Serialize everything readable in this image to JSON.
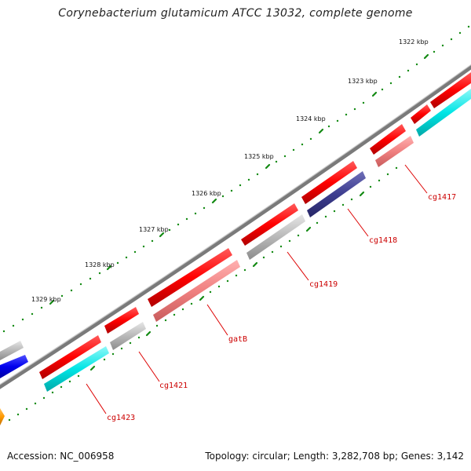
{
  "title": "Corynebacterium glutamicum ATCC 13032, complete genome",
  "accession": "Accession: NC_006958",
  "summary": "Topology: circular; Length: 3,282,708 bp; Genes: 3,142",
  "scale_labels": [
    "1322 kbp",
    "1323 kbp",
    "1324 kbp",
    "1325 kbp",
    "1326 kbp",
    "1327 kbp",
    "1328 kbp",
    "1329 kbp"
  ],
  "gene_labels": [
    "cg1417",
    "cg1418",
    "cg1419",
    "gatB",
    "cg1421",
    "cg1423"
  ],
  "colors": {
    "backbone": "#808080",
    "forward_cds": "#ff0000",
    "gene_label": "#cc0000",
    "tick": "#138a13",
    "cyan": "#00e5e5",
    "pink": "#f08080",
    "gray": "#b8b8b8",
    "navy": "#3d3d8f",
    "blue": "#0000ee",
    "orange": "#ff9900"
  }
}
